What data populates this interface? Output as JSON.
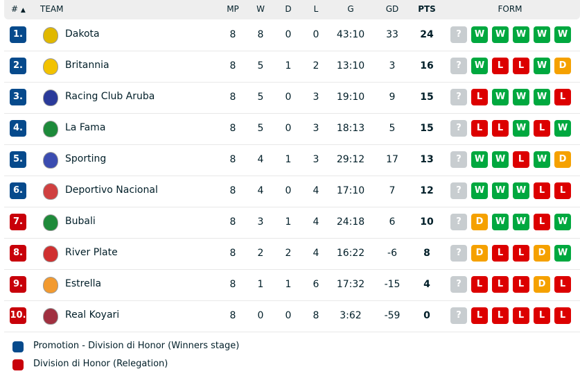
{
  "header": {
    "rank": "#",
    "sort_icon": "triangle-up",
    "team": "TEAM",
    "mp": "MP",
    "w": "W",
    "d": "D",
    "l": "L",
    "g": "G",
    "gd": "GD",
    "pts": "PTS",
    "form": "FORM"
  },
  "colors": {
    "promotion": "#064a8c",
    "relegation": "#c8000a",
    "W": "#00a83f",
    "L": "#dc0000",
    "D": "#f5a100",
    "?": "#c8cdd0"
  },
  "rows": [
    {
      "rank": "1.",
      "zone": "promotion",
      "team": "Dakota",
      "logo": "#e0b800",
      "mp": "8",
      "w": "8",
      "d": "0",
      "l": "0",
      "g": "43:10",
      "gd": "33",
      "pts": "24",
      "form": [
        "?",
        "W",
        "W",
        "W",
        "W",
        "W"
      ]
    },
    {
      "rank": "2.",
      "zone": "promotion",
      "team": "Britannia",
      "logo": "#f2c200",
      "mp": "8",
      "w": "5",
      "d": "1",
      "l": "2",
      "g": "13:10",
      "gd": "3",
      "pts": "16",
      "form": [
        "?",
        "W",
        "L",
        "L",
        "W",
        "D"
      ]
    },
    {
      "rank": "3.",
      "zone": "promotion",
      "team": "Racing Club Aruba",
      "logo": "#2a3a9a",
      "mp": "8",
      "w": "5",
      "d": "0",
      "l": "3",
      "g": "19:10",
      "gd": "9",
      "pts": "15",
      "form": [
        "?",
        "L",
        "W",
        "W",
        "W",
        "L"
      ]
    },
    {
      "rank": "4.",
      "zone": "promotion",
      "team": "La Fama",
      "logo": "#1d8a3a",
      "mp": "8",
      "w": "5",
      "d": "0",
      "l": "3",
      "g": "18:13",
      "gd": "5",
      "pts": "15",
      "form": [
        "?",
        "L",
        "L",
        "W",
        "L",
        "W"
      ]
    },
    {
      "rank": "5.",
      "zone": "promotion",
      "team": "Sporting",
      "logo": "#3b4cb0",
      "mp": "8",
      "w": "4",
      "d": "1",
      "l": "3",
      "g": "29:12",
      "gd": "17",
      "pts": "13",
      "form": [
        "?",
        "W",
        "W",
        "L",
        "W",
        "D"
      ]
    },
    {
      "rank": "6.",
      "zone": "promotion",
      "team": "Deportivo Nacional",
      "logo": "#d04040",
      "mp": "8",
      "w": "4",
      "d": "0",
      "l": "4",
      "g": "17:10",
      "gd": "7",
      "pts": "12",
      "form": [
        "?",
        "W",
        "W",
        "W",
        "L",
        "L"
      ]
    },
    {
      "rank": "7.",
      "zone": "relegation",
      "team": "Bubali",
      "logo": "#1f8a3a",
      "mp": "8",
      "w": "3",
      "d": "1",
      "l": "4",
      "g": "24:18",
      "gd": "6",
      "pts": "10",
      "form": [
        "?",
        "D",
        "W",
        "W",
        "L",
        "W"
      ]
    },
    {
      "rank": "8.",
      "zone": "relegation",
      "team": "River Plate",
      "logo": "#d03030",
      "mp": "8",
      "w": "2",
      "d": "2",
      "l": "4",
      "g": "16:22",
      "gd": "-6",
      "pts": "8",
      "form": [
        "?",
        "D",
        "L",
        "L",
        "D",
        "W"
      ]
    },
    {
      "rank": "9.",
      "zone": "relegation",
      "team": "Estrella",
      "logo": "#f29a30",
      "mp": "8",
      "w": "1",
      "d": "1",
      "l": "6",
      "g": "17:32",
      "gd": "-15",
      "pts": "4",
      "form": [
        "?",
        "L",
        "L",
        "L",
        "D",
        "L"
      ]
    },
    {
      "rank": "10.",
      "zone": "relegation",
      "team": "Real Koyari",
      "logo": "#a03040",
      "mp": "8",
      "w": "0",
      "d": "0",
      "l": "8",
      "g": "3:62",
      "gd": "-59",
      "pts": "0",
      "form": [
        "?",
        "L",
        "L",
        "L",
        "L",
        "L"
      ]
    }
  ],
  "legend": [
    {
      "zone": "promotion",
      "label": "Promotion - Division di Honor (Winners stage)"
    },
    {
      "zone": "relegation",
      "label": "Division di Honor (Relegation)"
    }
  ]
}
